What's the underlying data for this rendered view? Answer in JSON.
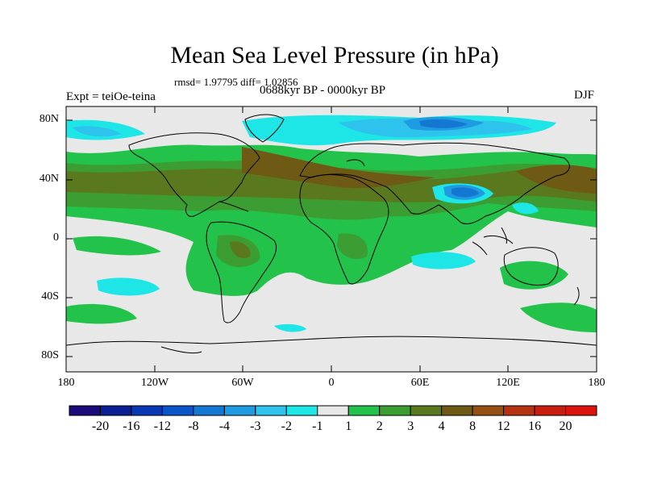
{
  "title": "Mean Sea Level Pressure (in hPa)",
  "stats": "rmsd= 1.97795 diff= 1.02856",
  "experiment": "Expt = teiOe-teina",
  "period": "0688kyr BP - 0000kyr BP",
  "season": "DJF",
  "axes": {
    "y_ticks": [
      "80N",
      "40N",
      "0",
      "40S",
      "80S"
    ],
    "x_ticks": [
      "180",
      "120W",
      "60W",
      "0",
      "60E",
      "120E",
      "180"
    ]
  },
  "colorbar": {
    "labels": [
      "-20",
      "-16",
      "-12",
      "-8",
      "-4",
      "-3",
      "-2",
      "-1",
      "1",
      "2",
      "3",
      "4",
      "8",
      "12",
      "16",
      "20"
    ],
    "colors": [
      "#1a0a7a",
      "#0a1e96",
      "#0838b4",
      "#0a55c8",
      "#1478d2",
      "#1e9be1",
      "#2dc3ec",
      "#1ee6e6",
      "#e8e8e8",
      "#23c34b",
      "#3c9e32",
      "#5a781e",
      "#6e5a14",
      "#965014",
      "#b4320f",
      "#c81e0f",
      "#dc140f"
    ]
  }
}
